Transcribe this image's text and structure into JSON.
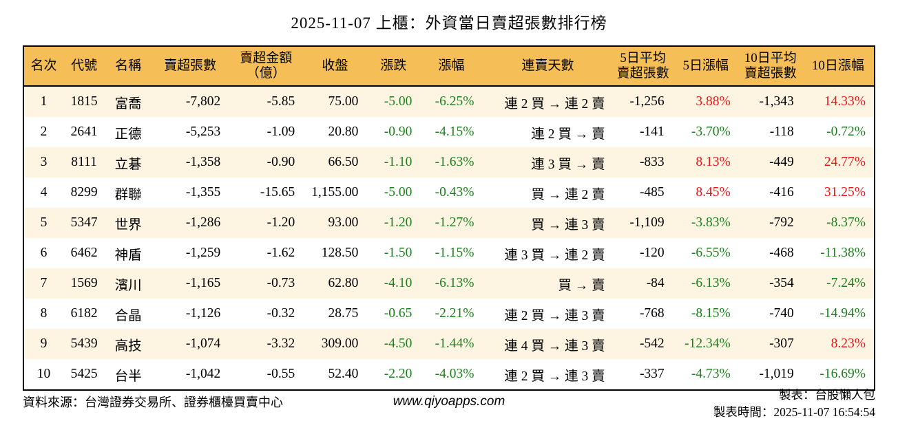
{
  "title": "2025-11-07 上櫃：外資當日賣超張數排行榜",
  "colors": {
    "header_bg": "#F6BE56",
    "row_alt": "#FDF5E2",
    "up_red": "#E61919",
    "down_green": "#1E7E1E",
    "border": "#000000"
  },
  "table": {
    "columns": [
      {
        "key": "rank",
        "label": "名次",
        "align": "center",
        "width": 58,
        "signColor": false
      },
      {
        "key": "code",
        "label": "代號",
        "align": "center",
        "width": 60,
        "signColor": false
      },
      {
        "key": "name",
        "label": "名稱",
        "align": "center",
        "width": 68,
        "signColor": false
      },
      {
        "key": "net-sell",
        "label": "賣超張數",
        "align": "right",
        "width": 112,
        "signColor": false
      },
      {
        "key": "amount",
        "label": "賣超金額\n（億）",
        "align": "right",
        "width": 108,
        "signColor": false
      },
      {
        "key": "close",
        "label": "收盤",
        "align": "right",
        "width": 92,
        "signColor": false
      },
      {
        "key": "change",
        "label": "漲跌",
        "align": "right",
        "width": 78,
        "signColor": true
      },
      {
        "key": "change-pct",
        "label": "漲幅",
        "align": "right",
        "width": 90,
        "signColor": true
      },
      {
        "key": "streak",
        "label": "連賣天數",
        "align": "right",
        "width": 190,
        "signColor": false
      },
      {
        "key": "avg5",
        "label": "5日平均\n賣超張數",
        "align": "right",
        "width": 86,
        "signColor": false
      },
      {
        "key": "pct5",
        "label": "5日漲幅",
        "align": "right",
        "width": 96,
        "signColor": true
      },
      {
        "key": "avg10",
        "label": "10日平均\n賣超張數",
        "align": "right",
        "width": 92,
        "signColor": false
      },
      {
        "key": "pct10",
        "label": "10日漲幅",
        "align": "right",
        "width": 105,
        "signColor": true
      }
    ],
    "rows": [
      [
        "1",
        "1815",
        "富喬",
        "-7,802",
        "-5.85",
        "75.00",
        "-5.00",
        "-6.25%",
        "連 2 買 → 連 2 賣",
        "-1,256",
        "3.88%",
        "-1,343",
        "14.33%"
      ],
      [
        "2",
        "2641",
        "正德",
        "-5,253",
        "-1.09",
        "20.80",
        "-0.90",
        "-4.15%",
        "連 2 買 → 賣",
        "-141",
        "-3.70%",
        "-118",
        "-0.72%"
      ],
      [
        "3",
        "8111",
        "立碁",
        "-1,358",
        "-0.90",
        "66.50",
        "-1.10",
        "-1.63%",
        "連 3 買 → 賣",
        "-833",
        "8.13%",
        "-449",
        "24.77%"
      ],
      [
        "4",
        "8299",
        "群聯",
        "-1,355",
        "-15.65",
        "1,155.00",
        "-5.00",
        "-0.43%",
        "買 → 連 2 賣",
        "-485",
        "8.45%",
        "-416",
        "31.25%"
      ],
      [
        "5",
        "5347",
        "世界",
        "-1,286",
        "-1.20",
        "93.00",
        "-1.20",
        "-1.27%",
        "買 → 連 3 賣",
        "-1,109",
        "-3.83%",
        "-792",
        "-8.37%"
      ],
      [
        "6",
        "6462",
        "神盾",
        "-1,259",
        "-1.62",
        "128.50",
        "-1.50",
        "-1.15%",
        "連 3 買 → 連 2 賣",
        "-120",
        "-6.55%",
        "-468",
        "-11.38%"
      ],
      [
        "7",
        "1569",
        "濱川",
        "-1,165",
        "-0.73",
        "62.80",
        "-4.10",
        "-6.13%",
        "買 → 賣",
        "-84",
        "-6.13%",
        "-354",
        "-7.24%"
      ],
      [
        "8",
        "6182",
        "合晶",
        "-1,126",
        "-0.32",
        "28.75",
        "-0.65",
        "-2.21%",
        "連 2 買 → 連 3 賣",
        "-768",
        "-8.15%",
        "-740",
        "-14.94%"
      ],
      [
        "9",
        "5439",
        "高技",
        "-1,074",
        "-3.32",
        "309.00",
        "-4.50",
        "-1.44%",
        "連 4 買 → 連 3 賣",
        "-542",
        "-12.34%",
        "-307",
        "8.23%"
      ],
      [
        "10",
        "5425",
        "台半",
        "-1,042",
        "-0.55",
        "52.40",
        "-2.20",
        "-4.03%",
        "連 2 買 → 連 3 賣",
        "-337",
        "-4.73%",
        "-1,019",
        "-16.69%"
      ]
    ]
  },
  "footer": {
    "source": "資料來源：台灣證券交易所、證券櫃檯買賣中心",
    "website": "www.qiyoapps.com",
    "maker": "製表：台股懶人包",
    "made_time": "製表時間：2025-11-07 16:54:54"
  },
  "chart_data": {
    "type": "table",
    "title": "2025-11-07 上櫃：外資當日賣超張數排行榜",
    "columns": [
      "名次",
      "代號",
      "名稱",
      "賣超張數",
      "賣超金額（億）",
      "收盤",
      "漲跌",
      "漲幅",
      "連賣天數",
      "5日平均賣超張數",
      "5日漲幅",
      "10日平均賣超張數",
      "10日漲幅"
    ],
    "rows": [
      [
        1,
        1815,
        "富喬",
        -7802,
        -5.85,
        75.0,
        -5.0,
        "-6.25%",
        "連 2 買 → 連 2 賣",
        -1256,
        "3.88%",
        -1343,
        "14.33%"
      ],
      [
        2,
        2641,
        "正德",
        -5253,
        -1.09,
        20.8,
        -0.9,
        "-4.15%",
        "連 2 買 → 賣",
        -141,
        "-3.70%",
        -118,
        "-0.72%"
      ],
      [
        3,
        8111,
        "立碁",
        -1358,
        -0.9,
        66.5,
        -1.1,
        "-1.63%",
        "連 3 買 → 賣",
        -833,
        "8.13%",
        -449,
        "24.77%"
      ],
      [
        4,
        8299,
        "群聯",
        -1355,
        -15.65,
        1155.0,
        -5.0,
        "-0.43%",
        "買 → 連 2 賣",
        -485,
        "8.45%",
        -416,
        "31.25%"
      ],
      [
        5,
        5347,
        "世界",
        -1286,
        -1.2,
        93.0,
        -1.2,
        "-1.27%",
        "買 → 連 3 賣",
        -1109,
        "-3.83%",
        -792,
        "-8.37%"
      ],
      [
        6,
        6462,
        "神盾",
        -1259,
        -1.62,
        128.5,
        -1.5,
        "-1.15%",
        "連 3 買 → 連 2 賣",
        -120,
        "-6.55%",
        -468,
        "-11.38%"
      ],
      [
        7,
        1569,
        "濱川",
        -1165,
        -0.73,
        62.8,
        -4.1,
        "-6.13%",
        "買 → 賣",
        -84,
        "-6.13%",
        -354,
        "-7.24%"
      ],
      [
        8,
        6182,
        "合晶",
        -1126,
        -0.32,
        28.75,
        -0.65,
        "-2.21%",
        "連 2 買 → 連 3 賣",
        -768,
        "-8.15%",
        -740,
        "-14.94%"
      ],
      [
        9,
        5439,
        "高技",
        -1074,
        -3.32,
        309.0,
        -4.5,
        "-1.44%",
        "連 4 買 → 連 3 賣",
        -542,
        "-12.34%",
        -307,
        "8.23%"
      ],
      [
        10,
        5425,
        "台半",
        -1042,
        -0.55,
        52.4,
        -2.2,
        "-4.03%",
        "連 2 買 → 連 3 賣",
        -337,
        "-4.73%",
        -1019,
        "-16.69%"
      ]
    ],
    "color_rule": "negative values green (#1E7E1E), positive percentage values red (#E61919)",
    "legend_position": "none",
    "grid": false
  }
}
